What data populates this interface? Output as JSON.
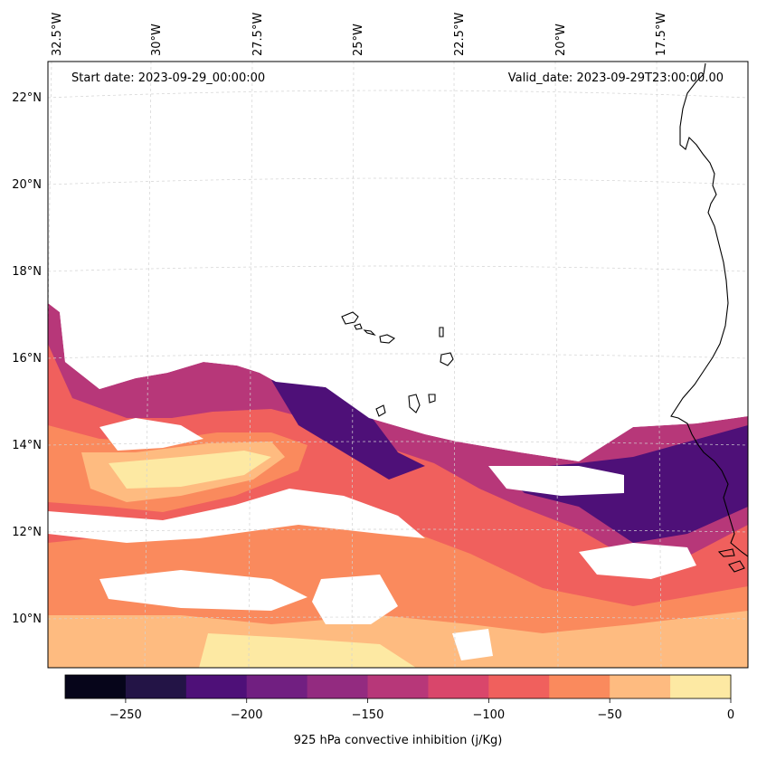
{
  "map": {
    "start_label": "Start date: 2023-09-29_00:00:00",
    "valid_label": "Valid_date: 2023-09-29T23:00:00.00",
    "lon_labels": [
      "32.5°W",
      "30°W",
      "27.5°W",
      "25°W",
      "22.5°W",
      "20°W",
      "17.5°W"
    ],
    "lat_labels": [
      "22°N",
      "20°N",
      "18°N",
      "16°N",
      "14°N",
      "12°N",
      "10°N"
    ]
  },
  "colorbar": {
    "title": "925 hPa convective inhibition (j/Kg)",
    "tick_labels": [
      "−250",
      "−200",
      "−150",
      "−100",
      "−50",
      "0"
    ],
    "levels": [
      -275,
      -250,
      -225,
      -200,
      -175,
      -150,
      -125,
      -100,
      -75,
      -50,
      -25,
      0
    ],
    "colors": [
      "#06051a",
      "#231446",
      "#4e1078",
      "#711f81",
      "#932b80",
      "#b73779",
      "#d9466b",
      "#f0605d",
      "#fa8a5d",
      "#febb80",
      "#fde9a3"
    ]
  },
  "chart_data": {
    "type": "heatmap",
    "variable": "925 hPa convective inhibition",
    "units": "j/Kg",
    "lon_range": [
      -33,
      -15
    ],
    "lat_range": [
      9,
      22.8
    ],
    "value_range": [
      -275,
      0
    ]
  }
}
